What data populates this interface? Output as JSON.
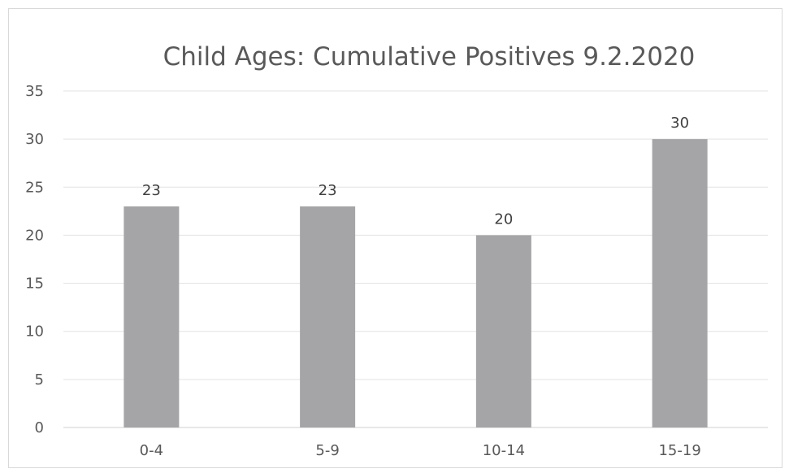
{
  "chart_data": {
    "type": "bar",
    "title": "Child Ages: Cumulative Positives 9.2.2020",
    "categories": [
      "0-4",
      "5-9",
      "10-14",
      "15-19"
    ],
    "values": [
      23,
      23,
      20,
      30
    ],
    "data_labels": [
      "23",
      "23",
      "20",
      "30"
    ],
    "xlabel": "",
    "ylabel": "",
    "ylim": [
      0,
      35
    ],
    "yticks": [
      "0",
      "5",
      "10",
      "15",
      "20",
      "25",
      "30",
      "35"
    ],
    "grid": true,
    "legend": "none",
    "bar_color": "#a5a5a7"
  }
}
